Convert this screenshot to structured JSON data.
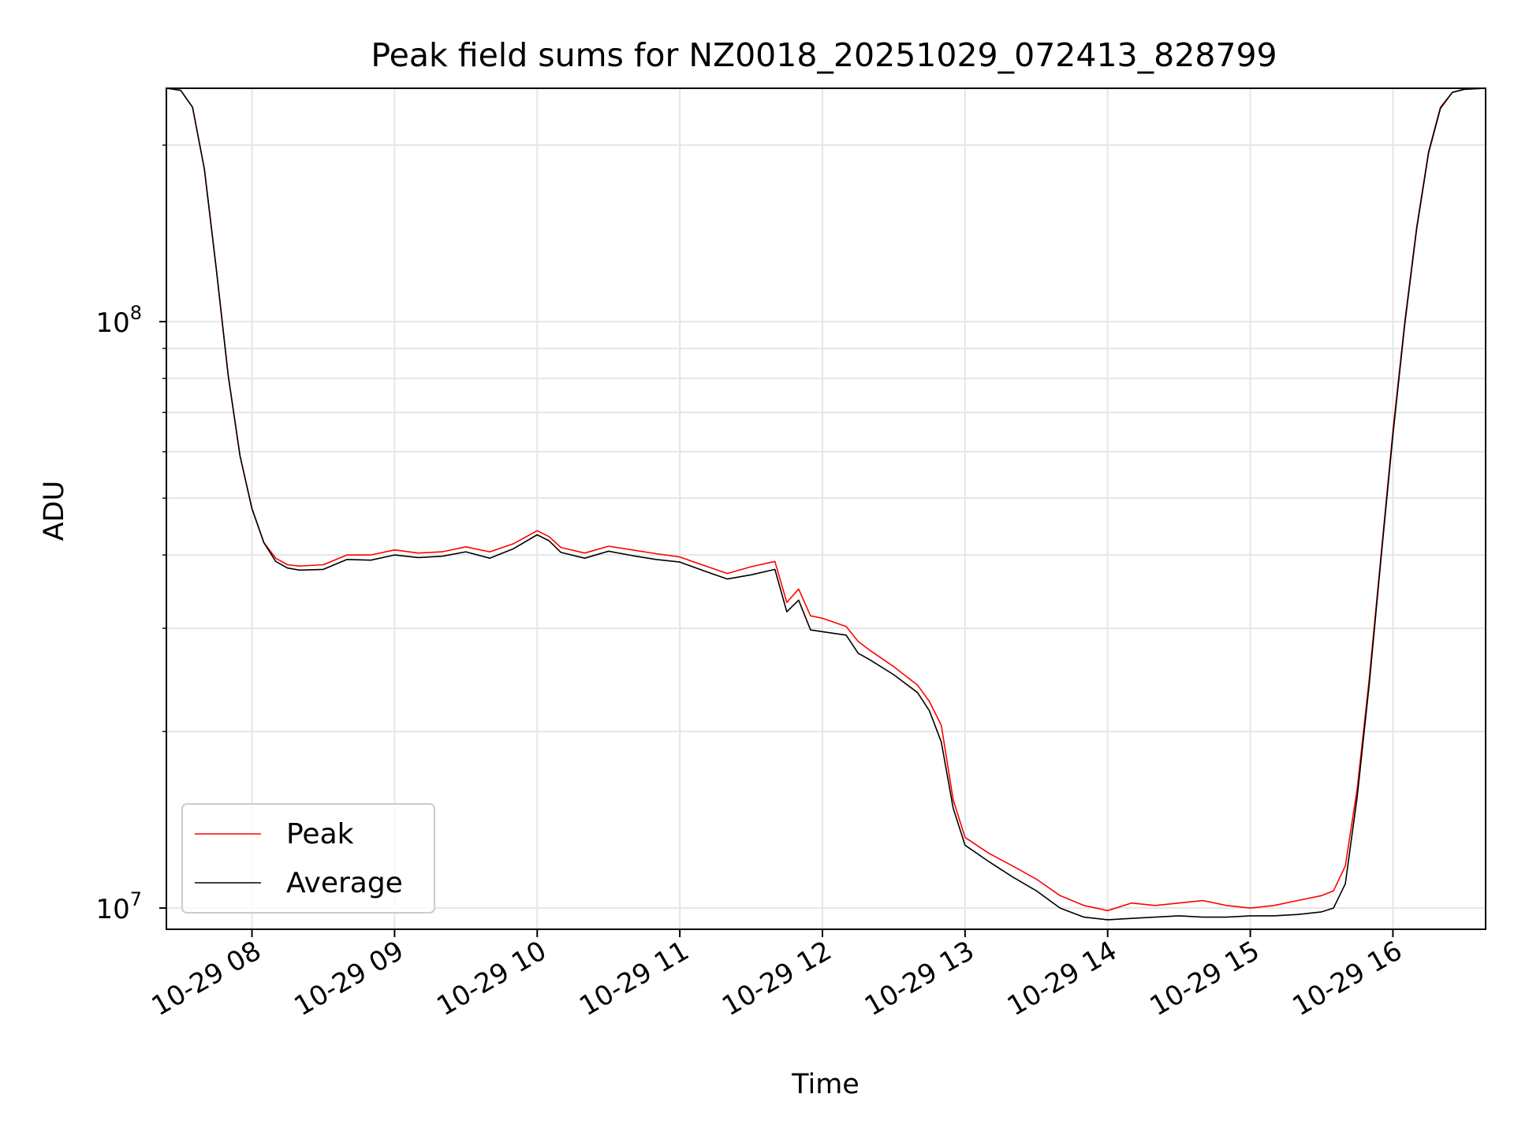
{
  "chart_data": {
    "type": "line",
    "title": "Peak field sums for NZ0018_20251029_072413_828799",
    "xlabel": "Time",
    "ylabel": "ADU",
    "xscale": "time",
    "yscale": "log",
    "xlim": [
      "2025-10-29T07:24",
      "2025-10-29T16:39"
    ],
    "ylim": [
      9200000,
      250000000
    ],
    "x_ticks": [
      "10-29 08",
      "10-29 09",
      "10-29 10",
      "10-29 11",
      "10-29 12",
      "10-29 13",
      "10-29 14",
      "10-29 15",
      "10-29 16"
    ],
    "y_ticks": [
      {
        "base": "10",
        "exp": "7",
        "value": 10000000
      },
      {
        "base": "10",
        "exp": "8",
        "value": 100000000
      }
    ],
    "grid": true,
    "legend": {
      "position": "lower-left",
      "entries": [
        {
          "label": "Peak",
          "color": "#ff0000"
        },
        {
          "label": "Average",
          "color": "#000000"
        }
      ]
    },
    "series": [
      {
        "name": "Peak",
        "color": "#ff0000",
        "x": [
          "07:24",
          "07:30",
          "07:35",
          "07:40",
          "07:45",
          "07:50",
          "07:55",
          "08:00",
          "08:05",
          "08:10",
          "08:15",
          "08:20",
          "08:30",
          "08:40",
          "08:50",
          "09:00",
          "09:10",
          "09:20",
          "09:30",
          "09:40",
          "09:50",
          "10:00",
          "10:05",
          "10:10",
          "10:20",
          "10:30",
          "10:40",
          "10:50",
          "11:00",
          "11:10",
          "11:20",
          "11:30",
          "11:40",
          "11:45",
          "11:50",
          "11:55",
          "12:00",
          "12:10",
          "12:15",
          "12:20",
          "12:30",
          "12:40",
          "12:45",
          "12:50",
          "12:55",
          "13:00",
          "13:10",
          "13:20",
          "13:30",
          "13:40",
          "13:50",
          "14:00",
          "14:10",
          "14:20",
          "14:30",
          "14:40",
          "14:50",
          "15:00",
          "15:10",
          "15:20",
          "15:30",
          "15:35",
          "15:40",
          "15:45",
          "15:50",
          "15:55",
          "16:00",
          "16:05",
          "16:10",
          "16:15",
          "16:20",
          "16:25",
          "16:30",
          "16:39"
        ],
        "y": [
          250000000,
          248000000,
          232000000,
          182000000,
          123000000,
          81000000,
          59000000,
          48000000,
          42000000,
          39500000,
          38500000,
          38300000,
          38500000,
          40000000,
          40000000,
          40800000,
          40300000,
          40500000,
          41300000,
          40500000,
          41800000,
          44000000,
          43000000,
          41200000,
          40300000,
          41400000,
          40800000,
          40200000,
          39700000,
          38400000,
          37200000,
          38200000,
          39000000,
          33200000,
          35000000,
          31500000,
          31200000,
          30200000,
          28500000,
          27500000,
          25800000,
          24000000,
          22500000,
          20500000,
          15300000,
          13200000,
          12400000,
          11800000,
          11200000,
          10500000,
          10100000,
          9900000,
          10200000,
          10100000,
          10200000,
          10300000,
          10100000,
          10000000,
          10100000,
          10300000,
          10500000,
          10700000,
          11800000,
          16000000,
          24500000,
          40000000,
          65000000,
          100000000,
          145000000,
          195000000,
          232000000,
          246000000,
          249000000,
          250000000
        ]
      },
      {
        "name": "Average",
        "color": "#000000",
        "x": [
          "07:24",
          "07:30",
          "07:35",
          "07:40",
          "07:45",
          "07:50",
          "07:55",
          "08:00",
          "08:05",
          "08:10",
          "08:15",
          "08:20",
          "08:30",
          "08:40",
          "08:50",
          "09:00",
          "09:10",
          "09:20",
          "09:30",
          "09:40",
          "09:50",
          "10:00",
          "10:05",
          "10:10",
          "10:20",
          "10:30",
          "10:40",
          "10:50",
          "11:00",
          "11:10",
          "11:20",
          "11:30",
          "11:40",
          "11:45",
          "11:50",
          "11:55",
          "12:00",
          "12:10",
          "12:15",
          "12:20",
          "12:30",
          "12:40",
          "12:45",
          "12:50",
          "12:55",
          "13:00",
          "13:10",
          "13:20",
          "13:30",
          "13:40",
          "13:50",
          "14:00",
          "14:10",
          "14:20",
          "14:30",
          "14:40",
          "14:50",
          "15:00",
          "15:10",
          "15:20",
          "15:30",
          "15:35",
          "15:40",
          "15:45",
          "15:50",
          "15:55",
          "16:00",
          "16:05",
          "16:10",
          "16:15",
          "16:20",
          "16:25",
          "16:30",
          "16:39"
        ],
        "y": [
          250000000,
          248000000,
          232000000,
          182000000,
          123000000,
          81000000,
          59000000,
          48000000,
          42000000,
          39000000,
          38000000,
          37700000,
          37800000,
          39300000,
          39200000,
          40000000,
          39600000,
          39800000,
          40500000,
          39500000,
          41000000,
          43300000,
          42300000,
          40400000,
          39500000,
          40600000,
          39900000,
          39300000,
          38900000,
          37600000,
          36400000,
          37000000,
          37800000,
          32000000,
          33500000,
          29800000,
          29600000,
          29200000,
          27200000,
          26500000,
          25000000,
          23300000,
          21700000,
          19200000,
          14800000,
          12800000,
          12000000,
          11300000,
          10700000,
          10000000,
          9650000,
          9550000,
          9600000,
          9650000,
          9700000,
          9650000,
          9650000,
          9700000,
          9700000,
          9750000,
          9850000,
          10000000,
          11000000,
          15500000,
          24000000,
          39500000,
          64000000,
          99000000,
          144000000,
          194000000,
          231000000,
          246000000,
          249000000,
          250000000
        ]
      }
    ]
  }
}
